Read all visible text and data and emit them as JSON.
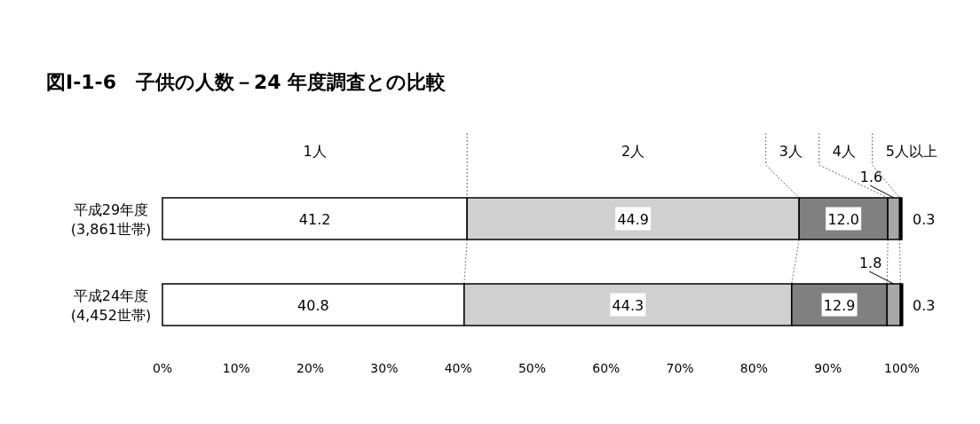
{
  "chart_data": {
    "type": "bar",
    "orientation": "horizontal",
    "stacked": true,
    "title": "図Ⅰ-1-6　子供の人数－24 年度調査との比較",
    "categories": [
      "平成29年度\n(3,861世帯)",
      "平成24年度\n(4,452世帯)"
    ],
    "series": [
      {
        "name": "1人",
        "color": "#ffffff",
        "values": [
          41.2,
          40.8
        ],
        "value_labels": [
          "41.2",
          "40.8"
        ]
      },
      {
        "name": "2人",
        "color": "#d0d0d0",
        "values": [
          44.9,
          44.3
        ],
        "value_labels": [
          "44.9",
          "44.3"
        ]
      },
      {
        "name": "3人",
        "color": "#808080",
        "values": [
          12.0,
          12.9
        ],
        "value_labels": [
          "12.0",
          "12.9"
        ]
      },
      {
        "name": "4人",
        "color": "#a6a6a6",
        "values": [
          1.6,
          1.8
        ],
        "value_labels": [
          "1.6",
          "1.8"
        ]
      },
      {
        "name": "5人以上",
        "color": "#000000",
        "values": [
          0.3,
          0.3
        ],
        "value_labels": [
          "0.3",
          "0.3"
        ]
      }
    ],
    "xlim": [
      0,
      100
    ],
    "xticks": [
      {
        "value": 0,
        "label": "0%"
      },
      {
        "value": 10,
        "label": "10%"
      },
      {
        "value": 20,
        "label": "20%"
      },
      {
        "value": 30,
        "label": "30%"
      },
      {
        "value": 40,
        "label": "40%"
      },
      {
        "value": 50,
        "label": "50%"
      },
      {
        "value": 60,
        "label": "60%"
      },
      {
        "value": 70,
        "label": "70%"
      },
      {
        "value": 80,
        "label": "80%"
      },
      {
        "value": 90,
        "label": "90%"
      },
      {
        "value": 100,
        "label": "100%"
      }
    ],
    "grid": false
  }
}
